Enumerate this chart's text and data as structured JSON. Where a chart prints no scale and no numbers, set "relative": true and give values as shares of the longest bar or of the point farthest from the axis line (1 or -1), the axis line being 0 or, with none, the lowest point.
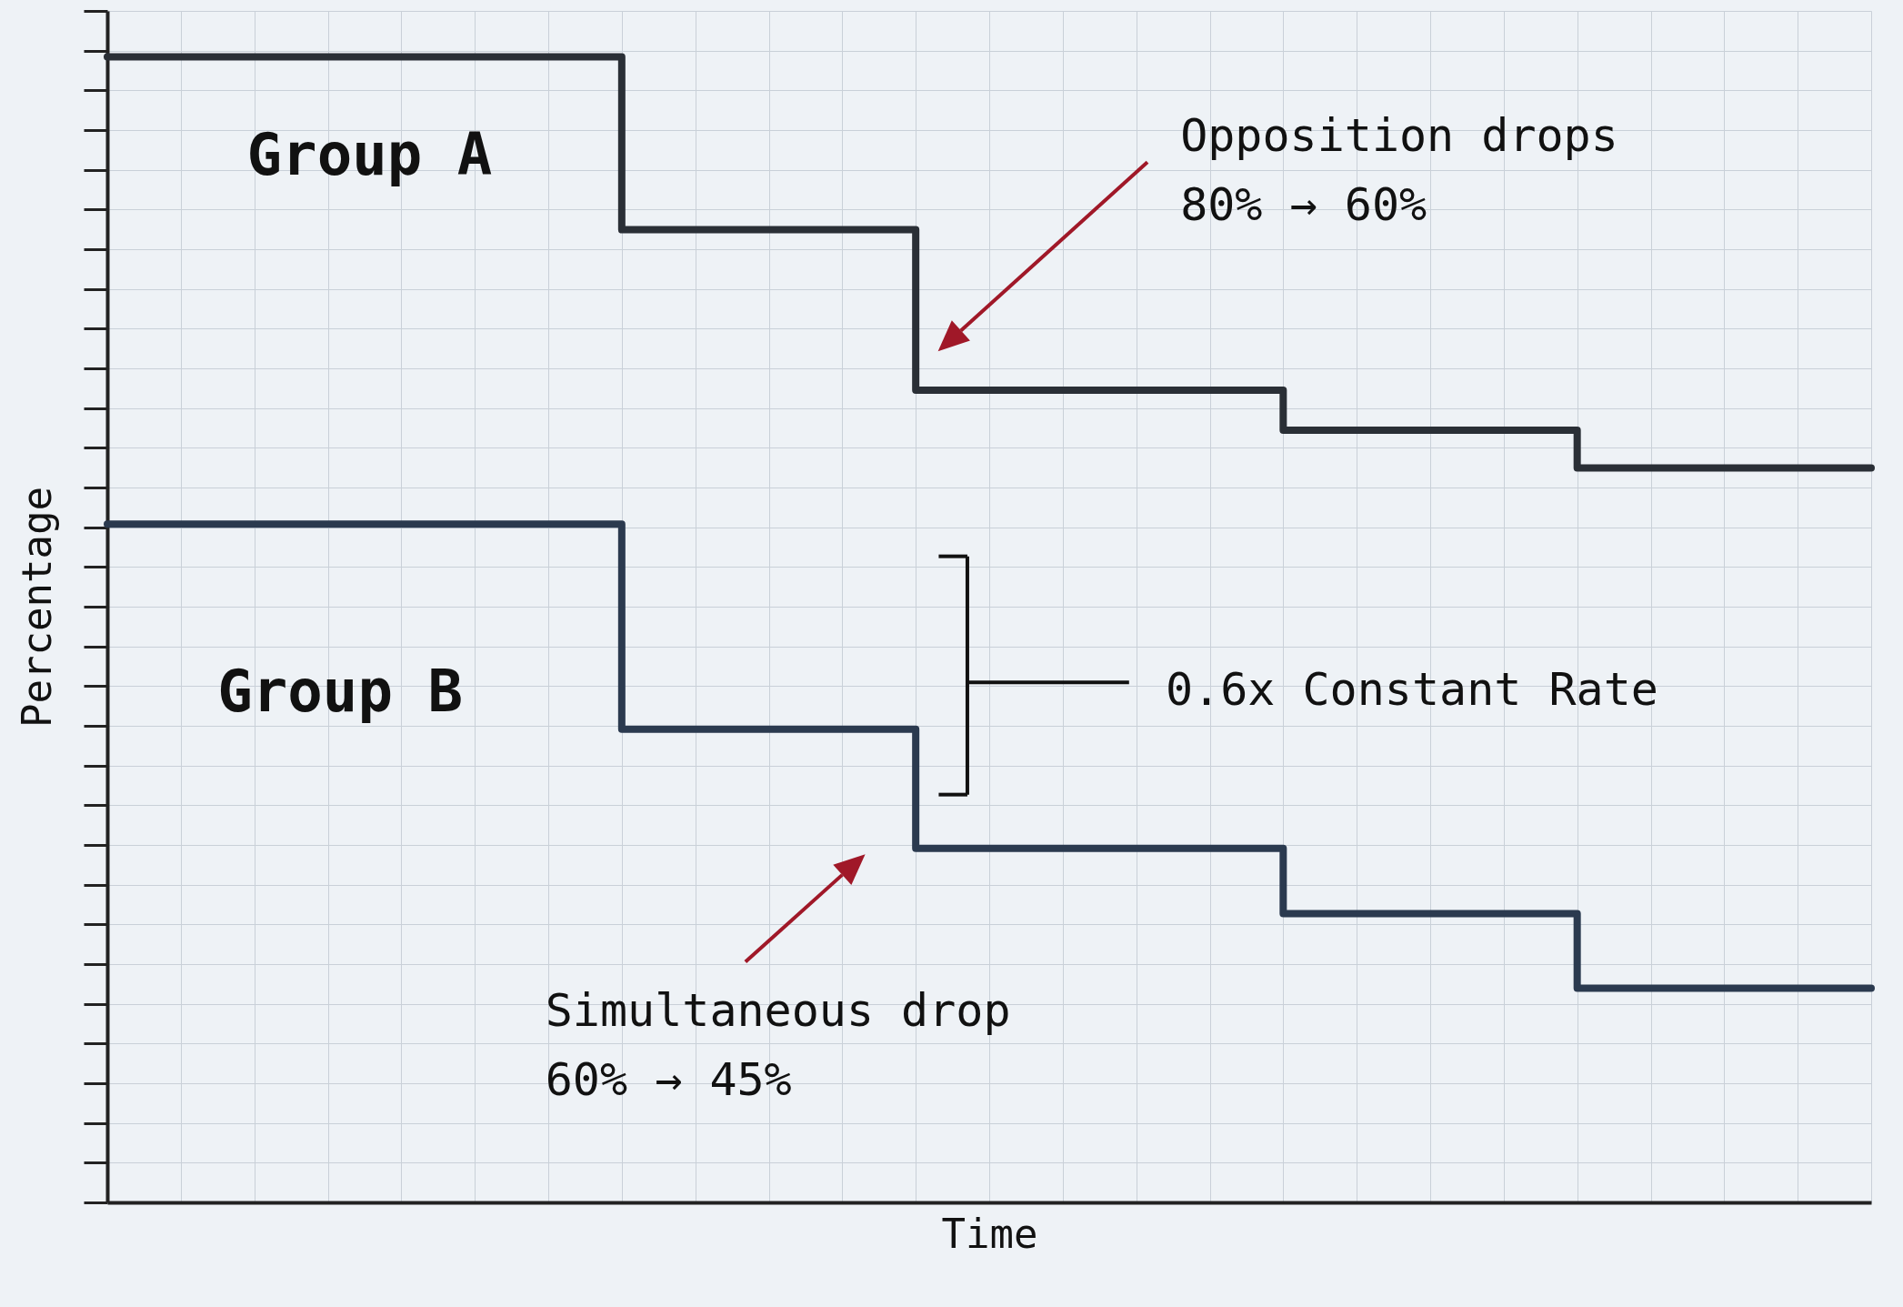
{
  "chart_data": {
    "type": "step",
    "relative": true,
    "xlabel": "Time",
    "ylabel": "Percentage",
    "grid": true,
    "legend": false,
    "categories": [
      null,
      null,
      null,
      null,
      null,
      null,
      null,
      null,
      null,
      null,
      null,
      null,
      null,
      null,
      null,
      null,
      null,
      null,
      null,
      null,
      null,
      null,
      null,
      null,
      null
    ],
    "series": [
      {
        "name": "Group A",
        "color": "#2a2f36",
        "values": [
          1,
          1,
          1,
          1,
          1,
          1,
          1,
          0.849,
          0.849,
          0.849,
          0.849,
          0.709,
          0.709,
          0.709,
          0.709,
          0.709,
          0.674,
          0.674,
          0.674,
          0.674,
          0.641,
          0.641,
          0.641,
          0.641,
          0.641
        ]
      },
      {
        "name": "Group B",
        "color": "#2b3a4f",
        "values": [
          0.592,
          0.592,
          0.592,
          0.592,
          0.592,
          0.592,
          0.592,
          0.413,
          0.413,
          0.413,
          0.413,
          0.309,
          0.309,
          0.309,
          0.309,
          0.309,
          0.252,
          0.252,
          0.252,
          0.252,
          0.187,
          0.187,
          0.187,
          0.187,
          0.187
        ]
      }
    ],
    "annotations": [
      "Opposition drops\n80% → 60%",
      "0.6x Constant Rate",
      "Simultaneous drop\n60% → 45%"
    ]
  }
}
